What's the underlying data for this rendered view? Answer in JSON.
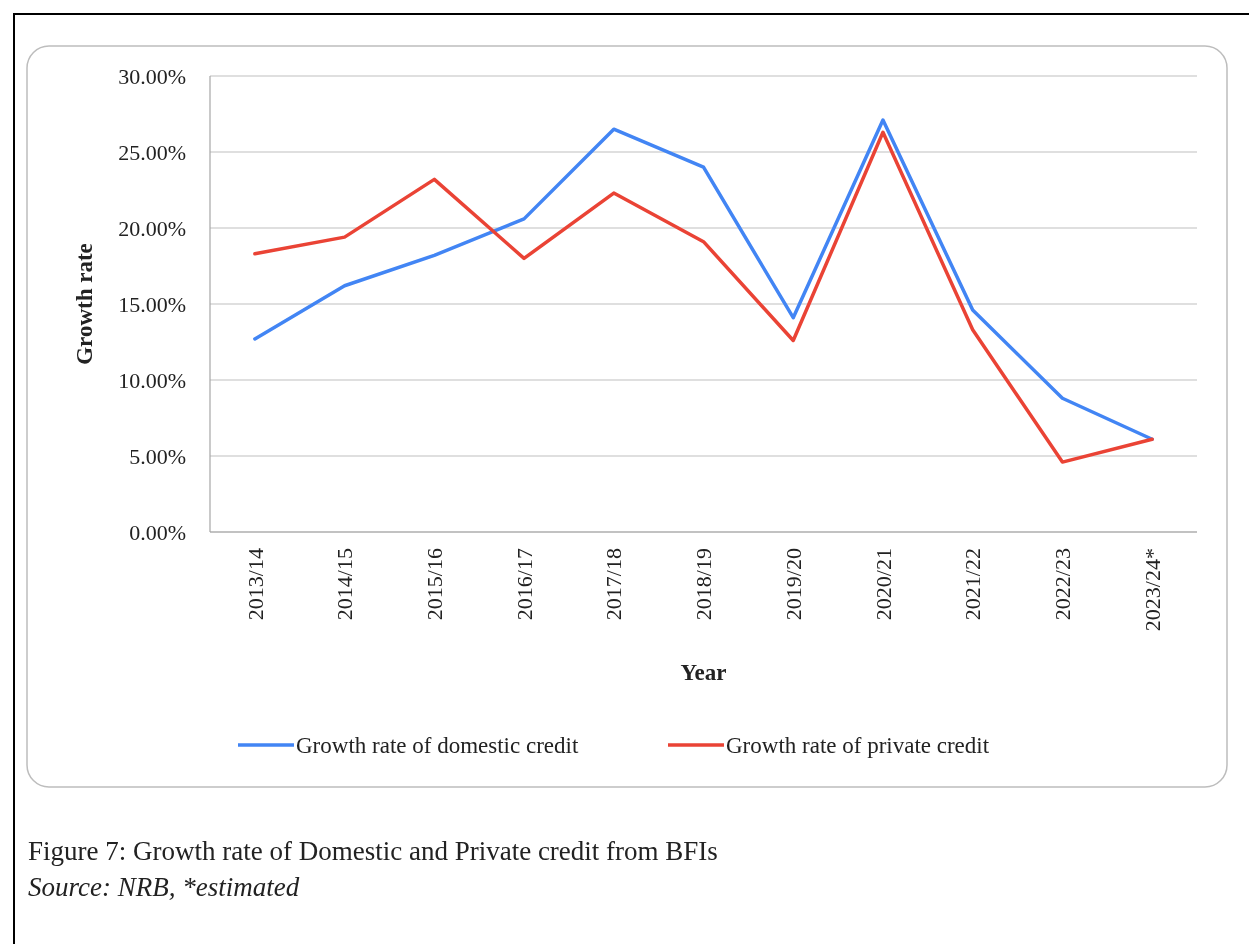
{
  "chart_data": {
    "type": "line",
    "xlabel": "Year",
    "ylabel": "Growth rate",
    "categories": [
      "2013/14",
      "2014/15",
      "2015/16",
      "2016/17",
      "2017/18",
      "2018/19",
      "2019/20",
      "2020/21",
      "2021/22",
      "2022/23",
      "2023/24*"
    ],
    "series": [
      {
        "name": "Growth rate of domestic credit",
        "color": "#4285f4",
        "values": [
          12.7,
          16.2,
          18.2,
          20.6,
          26.5,
          24.0,
          14.1,
          27.1,
          14.6,
          8.8,
          6.1
        ]
      },
      {
        "name": "Growth rate of private credit",
        "color": "#ea4335",
        "values": [
          18.3,
          19.4,
          23.2,
          18.0,
          22.3,
          19.1,
          12.6,
          26.3,
          13.3,
          4.6,
          6.1
        ]
      }
    ],
    "ylim": [
      0,
      30
    ],
    "yticks": [
      {
        "value": 0,
        "label": "0.00%"
      },
      {
        "value": 5,
        "label": "5.00%"
      },
      {
        "value": 10,
        "label": "10.00%"
      },
      {
        "value": 15,
        "label": "15.00%"
      },
      {
        "value": 20,
        "label": "20.00%"
      },
      {
        "value": 25,
        "label": "25.00%"
      },
      {
        "value": 30,
        "label": "30.00%"
      }
    ],
    "grid": "y",
    "legend": "bottom",
    "marker": "none",
    "line_style": "solid",
    "annotations": [
      "Figure 7: Growth rate of Domestic and Private credit from BFIs",
      "Source: NRB, *estimated"
    ]
  }
}
